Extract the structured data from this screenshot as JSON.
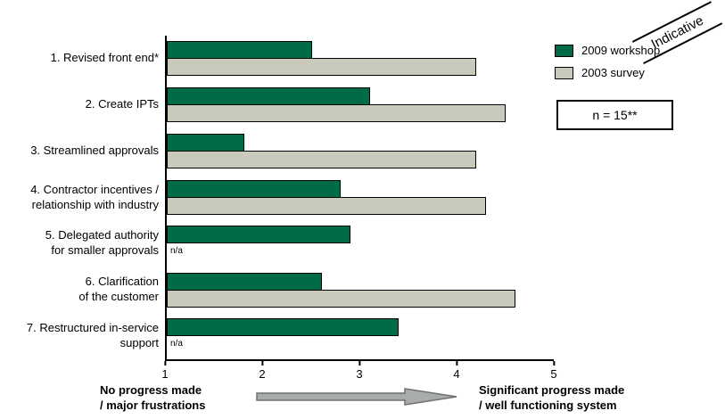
{
  "chart_data": {
    "type": "bar",
    "orientation": "horizontal",
    "title": "",
    "categories": [
      "1. Revised front end*",
      "2. Create IPTs",
      "3. Streamlined approvals",
      "4. Contractor incentives /\nrelationship with industry",
      "5. Delegated authority\nfor smaller approvals",
      "6. Clarification\nof the customer",
      "7. Restructured in-service\nsupport"
    ],
    "series": [
      {
        "name": "2009 workshop",
        "color": "#006B45",
        "values": [
          2.5,
          3.1,
          1.8,
          2.8,
          2.9,
          2.6,
          3.4
        ]
      },
      {
        "name": "2003 survey",
        "color": "#C9C9BC",
        "values": [
          4.2,
          4.5,
          4.2,
          4.3,
          null,
          4.6,
          null
        ]
      }
    ],
    "na_label": "n/a",
    "xlim": [
      1,
      5
    ],
    "xticks": [
      1,
      2,
      3,
      4,
      5
    ],
    "grid": false,
    "legend_position": "top-right",
    "annotation": "n = 15**",
    "stamp": "Indicative",
    "axis_left_caption": "No progress made\n/ major frustrations",
    "axis_right_caption": "Significant progress made\n/ well functioning system"
  },
  "colors": {
    "series_2009": "#006B45",
    "series_2003": "#C9C9BC",
    "arrow_fill": "#A9ADA9",
    "arrow_stroke": "#6E726E",
    "axis": "#000000"
  }
}
